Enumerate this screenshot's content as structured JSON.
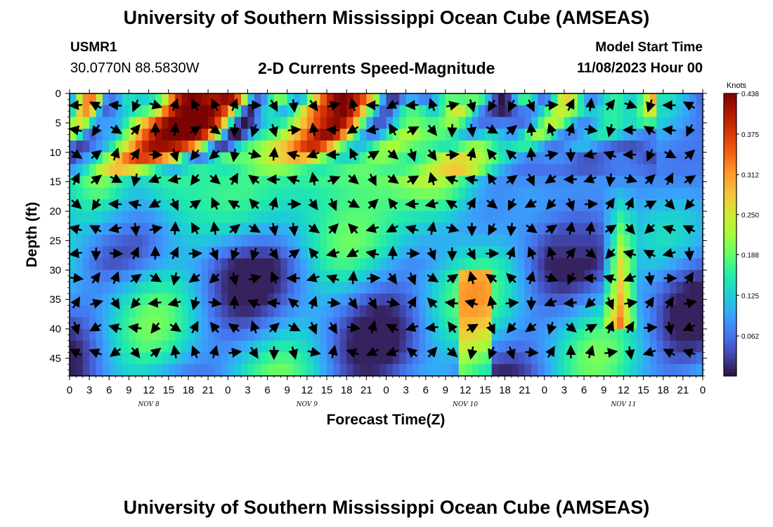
{
  "header": {
    "title": "University of Southern Mississippi Ocean Cube (AMSEAS)",
    "station": "USMR1",
    "coordinates": "30.0770N  88.5830W",
    "subtitle": "2-D Currents Speed-Magnitude",
    "model_start_label": "Model Start Time",
    "model_start_value": "11/08/2023 Hour 00"
  },
  "footer": {
    "title": "University of Southern Mississippi Ocean Cube (AMSEAS)"
  },
  "colors": {
    "colormap": [
      "#30123b",
      "#4145ab",
      "#4675ed",
      "#39a2fc",
      "#1bcfd4",
      "#24eca6",
      "#61fc6c",
      "#a4fc3b",
      "#d1e834",
      "#f3c63a",
      "#fe9b2d",
      "#f36315",
      "#d93806",
      "#b11901",
      "#7a0402"
    ],
    "arrow": "#000000"
  },
  "chart_data": {
    "type": "heatmap",
    "title": "2-D Currents Speed-Magnitude",
    "xlabel": "Forecast Time(Z)",
    "ylabel": "Depth (ft)",
    "colorbar_label": "Knots",
    "x_unit": "hours since 11/08/2023 00Z",
    "xlim": [
      0,
      96
    ],
    "ylim": [
      0,
      48
    ],
    "y_inverted": true,
    "x_tick_values": [
      0,
      3,
      6,
      9,
      12,
      15,
      18,
      21,
      24,
      27,
      30,
      33,
      36,
      39,
      42,
      45,
      48,
      51,
      54,
      57,
      60,
      63,
      66,
      69,
      72,
      75,
      78,
      81,
      84,
      87,
      90,
      93,
      96
    ],
    "x_tick_labels": [
      "0",
      "3",
      "6",
      "9",
      "12",
      "15",
      "18",
      "21",
      "0",
      "3",
      "6",
      "9",
      "12",
      "15",
      "18",
      "21",
      "0",
      "3",
      "6",
      "9",
      "12",
      "15",
      "18",
      "21",
      "0",
      "3",
      "6",
      "9",
      "12",
      "15",
      "18",
      "21",
      "0"
    ],
    "y_ticks": [
      0,
      5,
      10,
      15,
      20,
      25,
      30,
      35,
      40,
      45
    ],
    "day_labels": [
      {
        "x": 12,
        "label": "NOV 8"
      },
      {
        "x": 36,
        "label": "NOV 9"
      },
      {
        "x": 60,
        "label": "NOV 10"
      },
      {
        "x": 84,
        "label": "NOV 11"
      }
    ],
    "colorbar_ticks": [
      0.062,
      0.125,
      0.188,
      0.25,
      0.312,
      0.375,
      0.438
    ],
    "colorbar_range": [
      0.0,
      0.438
    ],
    "time_points": [
      0,
      1,
      2,
      3,
      4,
      5,
      6,
      7,
      8,
      9,
      10,
      11,
      12,
      13,
      14,
      15,
      16,
      17,
      18,
      19,
      20,
      21,
      22,
      23,
      24,
      25,
      26,
      27,
      28,
      29,
      30,
      31,
      32,
      33,
      34,
      35,
      36,
      37,
      38,
      39,
      40,
      41,
      42,
      43,
      44,
      45,
      46,
      47,
      48,
      49,
      50,
      51,
      52,
      53,
      54,
      55,
      56,
      57,
      58,
      59,
      60,
      61,
      62,
      63,
      64,
      65,
      66,
      67,
      68,
      69,
      70,
      71,
      72,
      73,
      74,
      75,
      76,
      77,
      78,
      79,
      80,
      81,
      82,
      83,
      84,
      85,
      86,
      87,
      88,
      89,
      90,
      91,
      92,
      93,
      94,
      95,
      96
    ],
    "depth_levels": [
      0,
      2,
      4,
      6,
      8,
      10,
      12,
      14,
      16,
      18,
      20,
      22,
      24,
      26,
      28,
      30,
      32,
      34,
      36,
      38,
      40,
      42,
      44,
      46,
      48
    ],
    "speed_knots": [
      [
        0.112,
        0.236,
        0.322,
        0.329,
        0.24,
        0.087,
        0.064,
        0.095,
        0.137,
        0.142,
        0.126,
        0.127,
        0.148,
        0.178,
        0.241,
        0.327,
        0.394,
        0.427,
        0.438,
        0.431,
        0.42,
        0.412,
        0.415,
        0.427,
        0.416,
        0.35,
        0.232,
        0.107,
        0.051,
        0.084,
        0.155,
        0.201,
        0.185,
        0.139,
        0.102,
        0.133,
        0.209,
        0.288,
        0.352,
        0.4,
        0.43,
        0.438,
        0.424,
        0.396,
        0.361,
        0.302,
        0.208,
        0.101,
        0.03,
        0.027,
        0.071,
        0.102,
        0.094,
        0.075,
        0.075,
        0.109,
        0.158,
        0.185,
        0.185,
        0.178,
        0.184,
        0.188,
        0.165,
        0.106,
        0.039,
        0.002,
        0.026,
        0.098,
        0.162,
        0.165,
        0.116,
        0.064,
        0.079,
        0.15,
        0.241,
        0.272,
        0.231,
        0.154,
        0.092,
        0.081,
        0.107,
        0.142,
        0.162,
        0.154,
        0.133,
        0.127,
        0.164,
        0.235,
        0.3
      ],
      [
        0.147,
        0.27,
        0.319,
        0.258,
        0.112,
        0.053,
        0.068,
        0.103,
        0.124,
        0.147,
        0.164,
        0.176,
        0.204,
        0.255,
        0.332,
        0.386,
        0.426,
        0.438,
        0.438,
        0.438,
        0.438,
        0.433,
        0.408,
        0.369,
        0.282,
        0.164,
        0.056,
        0.013,
        0.068,
        0.121,
        0.138,
        0.122,
        0.11,
        0.135,
        0.195,
        0.26,
        0.316,
        0.355,
        0.379,
        0.405,
        0.427,
        0.438,
        0.416,
        0.353,
        0.282,
        0.188,
        0.107,
        0.049,
        0.046,
        0.099,
        0.147,
        0.173,
        0.175,
        0.159,
        0.136,
        0.135,
        0.166,
        0.215,
        0.248,
        0.241,
        0.195,
        0.13,
        0.077,
        0.046,
        0.023,
        0.008,
        0.02,
        0.048,
        0.067,
        0.072,
        0.086,
        0.12,
        0.173,
        0.222,
        0.243,
        0.228,
        0.195,
        0.155,
        0.128,
        0.122,
        0.136,
        0.155,
        0.16,
        0.149,
        0.137,
        0.144,
        0.178,
        0.228,
        0.252
      ],
      [
        0.215,
        0.256,
        0.213,
        0.127,
        0.087,
        0.09,
        0.094,
        0.111,
        0.154,
        0.206,
        0.253,
        0.292,
        0.336,
        0.382,
        0.42,
        0.438,
        0.438,
        0.438,
        0.438,
        0.438,
        0.438,
        0.418,
        0.36,
        0.269,
        0.149,
        0.044,
        0.002,
        0.025,
        0.077,
        0.116,
        0.138,
        0.146,
        0.162,
        0.195,
        0.24,
        0.287,
        0.326,
        0.364,
        0.394,
        0.418,
        0.427,
        0.41,
        0.359,
        0.278,
        0.184,
        0.099,
        0.049,
        0.048,
        0.085,
        0.134,
        0.171,
        0.19,
        0.193,
        0.184,
        0.175,
        0.176,
        0.192,
        0.211,
        0.207,
        0.174,
        0.123,
        0.081,
        0.061,
        0.06,
        0.065,
        0.068,
        0.067,
        0.061,
        0.058,
        0.073,
        0.118,
        0.176,
        0.223,
        0.236,
        0.208,
        0.157,
        0.108,
        0.081,
        0.082,
        0.103,
        0.131,
        0.155,
        0.161,
        0.15,
        0.138,
        0.139,
        0.158,
        0.173,
        0.163
      ],
      [
        0.213,
        0.155,
        0.076,
        0.05,
        0.075,
        0.096,
        0.109,
        0.143,
        0.197,
        0.254,
        0.306,
        0.353,
        0.393,
        0.422,
        0.435,
        0.438,
        0.438,
        0.438,
        0.436,
        0.42,
        0.381,
        0.309,
        0.207,
        0.098,
        0.018,
        0.004,
        0.045,
        0.099,
        0.139,
        0.162,
        0.18,
        0.202,
        0.231,
        0.262,
        0.295,
        0.332,
        0.37,
        0.404,
        0.423,
        0.419,
        0.386,
        0.322,
        0.242,
        0.164,
        0.105,
        0.077,
        0.083,
        0.118,
        0.164,
        0.201,
        0.219,
        0.221,
        0.212,
        0.199,
        0.19,
        0.184,
        0.179,
        0.167,
        0.145,
        0.119,
        0.105,
        0.108,
        0.123,
        0.135,
        0.131,
        0.112,
        0.092,
        0.093,
        0.125,
        0.173,
        0.209,
        0.211,
        0.18,
        0.131,
        0.089,
        0.07,
        0.074,
        0.092,
        0.114,
        0.134,
        0.149,
        0.15,
        0.138,
        0.118,
        0.101,
        0.09,
        0.08,
        0.07,
        0.069
      ],
      [
        0.056,
        0.03,
        0.039,
        0.066,
        0.089,
        0.115,
        0.154,
        0.205,
        0.255,
        0.304,
        0.352,
        0.393,
        0.417,
        0.422,
        0.419,
        0.41,
        0.395,
        0.37,
        0.332,
        0.272,
        0.19,
        0.101,
        0.039,
        0.03,
        0.068,
        0.121,
        0.16,
        0.182,
        0.197,
        0.216,
        0.239,
        0.262,
        0.285,
        0.31,
        0.341,
        0.371,
        0.388,
        0.384,
        0.354,
        0.303,
        0.24,
        0.182,
        0.138,
        0.116,
        0.119,
        0.144,
        0.178,
        0.207,
        0.221,
        0.219,
        0.206,
        0.192,
        0.182,
        0.176,
        0.17,
        0.162,
        0.153,
        0.151,
        0.161,
        0.181,
        0.201,
        0.212,
        0.206,
        0.185,
        0.158,
        0.138,
        0.135,
        0.146,
        0.158,
        0.156,
        0.136,
        0.105,
        0.077,
        0.063,
        0.068,
        0.085,
        0.102,
        0.108,
        0.103,
        0.089,
        0.074,
        0.062,
        0.052,
        0.045,
        0.041,
        0.04,
        0.046,
        0.056,
        0.066
      ],
      [
        0.036,
        0.069,
        0.093,
        0.118,
        0.156,
        0.204,
        0.25,
        0.291,
        0.33,
        0.357,
        0.37,
        0.368,
        0.355,
        0.336,
        0.308,
        0.265,
        0.207,
        0.144,
        0.093,
        0.073,
        0.085,
        0.118,
        0.153,
        0.177,
        0.186,
        0.186,
        0.186,
        0.194,
        0.209,
        0.226,
        0.244,
        0.261,
        0.277,
        0.291,
        0.297,
        0.29,
        0.268,
        0.235,
        0.199,
        0.168,
        0.146,
        0.136,
        0.139,
        0.152,
        0.172,
        0.191,
        0.203,
        0.204,
        0.195,
        0.182,
        0.17,
        0.162,
        0.162,
        0.171,
        0.188,
        0.212,
        0.237,
        0.255,
        0.263,
        0.261,
        0.251,
        0.237,
        0.221,
        0.201,
        0.178,
        0.153,
        0.128,
        0.105,
        0.087,
        0.075,
        0.071,
        0.073,
        0.078,
        0.08,
        0.077,
        0.068,
        0.057,
        0.047,
        0.042,
        0.042,
        0.048,
        0.057,
        0.064,
        0.067,
        0.065,
        0.059,
        0.051,
        0.043,
        0.037
      ],
      [
        0.094,
        0.115,
        0.145,
        0.182,
        0.222,
        0.257,
        0.279,
        0.285,
        0.277,
        0.259,
        0.235,
        0.208,
        0.177,
        0.146,
        0.122,
        0.112,
        0.117,
        0.134,
        0.151,
        0.16,
        0.161,
        0.156,
        0.151,
        0.149,
        0.153,
        0.161,
        0.173,
        0.184,
        0.194,
        0.202,
        0.206,
        0.206,
        0.202,
        0.193,
        0.181,
        0.17,
        0.161,
        0.157,
        0.157,
        0.162,
        0.168,
        0.175,
        0.181,
        0.185,
        0.186,
        0.184,
        0.18,
        0.175,
        0.172,
        0.171,
        0.174,
        0.181,
        0.193,
        0.21,
        0.229,
        0.248,
        0.265,
        0.277,
        0.281,
        0.275,
        0.258,
        0.231,
        0.198,
        0.164,
        0.132,
        0.105,
        0.085,
        0.071,
        0.064,
        0.061,
        0.061,
        0.061,
        0.062,
        0.062,
        0.06,
        0.056,
        0.051,
        0.047,
        0.046,
        0.048,
        0.053,
        0.059,
        0.065,
        0.068,
        0.068,
        0.066,
        0.062,
        0.058,
        0.055
      ],
      [
        0.148,
        0.166,
        0.183,
        0.195,
        0.199,
        0.194,
        0.18,
        0.163,
        0.147,
        0.136,
        0.133,
        0.137,
        0.145,
        0.153,
        0.159,
        0.162,
        0.163,
        0.162,
        0.161,
        0.16,
        0.16,
        0.161,
        0.163,
        0.165,
        0.167,
        0.168,
        0.169,
        0.169,
        0.168,
        0.166,
        0.164,
        0.162,
        0.16,
        0.159,
        0.159,
        0.16,
        0.162,
        0.165,
        0.168,
        0.171,
        0.174,
        0.177,
        0.179,
        0.181,
        0.183,
        0.185,
        0.187,
        0.19,
        0.194,
        0.2,
        0.207,
        0.215,
        0.222,
        0.228,
        0.231,
        0.229,
        0.222,
        0.209,
        0.191,
        0.169,
        0.146,
        0.124,
        0.106,
        0.092,
        0.084,
        0.08,
        0.079,
        0.08,
        0.081,
        0.082,
        0.082,
        0.081,
        0.08,
        0.079,
        0.078,
        0.078,
        0.078,
        0.079,
        0.08,
        0.081,
        0.082,
        0.082,
        0.082,
        0.082,
        0.081,
        0.08,
        0.079,
        0.078,
        0.077
      ]
    ],
    "speed_note": "rows = depth levels 0-48 ft every 2 ft (first 8 shown here); columns = hourly time steps 0-96. Remaining depth rows continue the banded speed pattern seen in the figure.",
    "vectors_note": "Black arrows show current direction at sampled depth/time positions."
  }
}
